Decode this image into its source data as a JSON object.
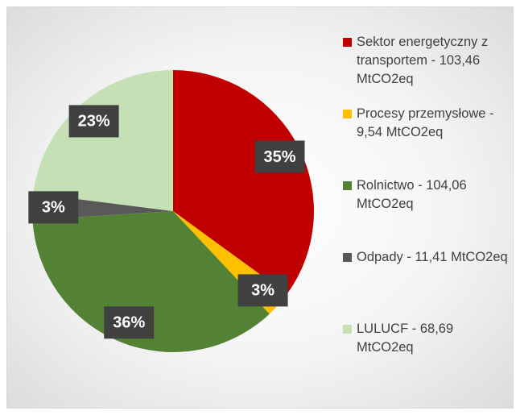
{
  "chart_data": {
    "type": "pie",
    "categories": [
      "Sektor energetyczny z transportem - 103,46 MtCO2eq",
      "Procesy przemysłowe - 9,54 MtCO2eq",
      "Rolnictwo - 104,06 MtCO2eq",
      "Odpady - 11,41 MtCO2eq",
      "LULUCF - 68,69 MtCO2eq"
    ],
    "values": [
      35,
      3,
      36,
      3,
      23
    ],
    "value_labels": [
      "35%",
      "3%",
      "36%",
      "3%",
      "23%"
    ],
    "colors": [
      "#c00000",
      "#ffc000",
      "#548235",
      "#595959",
      "#c5e0b4"
    ],
    "legend": "right"
  }
}
